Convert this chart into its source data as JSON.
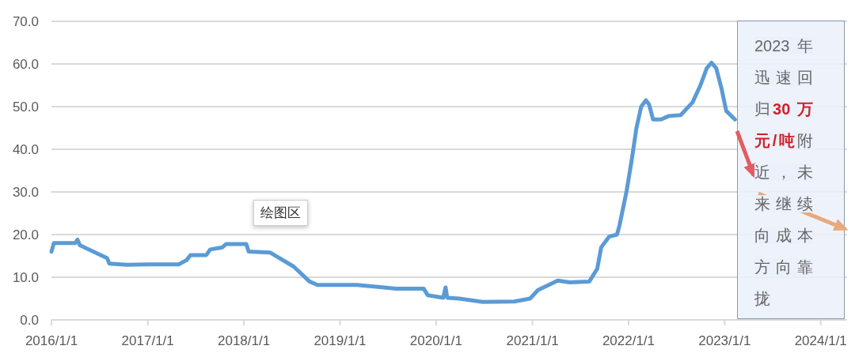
{
  "chart_data": {
    "type": "line",
    "x": [
      "2016-01-01",
      "2016-01-10",
      "2016-03-31",
      "2016-04-09",
      "2016-04-18",
      "2016-07-30",
      "2016-08-08",
      "2016-10-13",
      "2017-01-01",
      "2017-04-28",
      "2017-05-28",
      "2017-06-12",
      "2017-08-11",
      "2017-08-26",
      "2017-10-11",
      "2017-10-26",
      "2018-01-10",
      "2018-01-19",
      "2018-04-10",
      "2018-07-09",
      "2018-09-07",
      "2018-10-07",
      "2019-03-05",
      "2019-06-03",
      "2019-08-02",
      "2019-11-15",
      "2019-11-30",
      "2020-01-28",
      "2020-02-06",
      "2020-02-12",
      "2020-03-28",
      "2020-06-26",
      "2020-10-24",
      "2020-12-23",
      "2021-01-22",
      "2021-04-07",
      "2021-05-22",
      "2021-08-05",
      "2021-09-04",
      "2021-09-19",
      "2021-10-19",
      "2021-11-18",
      "2021-11-27",
      "2021-12-24",
      "2022-01-13",
      "2022-01-31",
      "2022-02-18",
      "2022-03-08",
      "2022-03-20",
      "2022-04-04",
      "2022-05-04",
      "2022-06-03",
      "2022-07-18",
      "2022-09-01",
      "2022-10-01",
      "2022-10-25",
      "2022-11-12",
      "2022-11-30",
      "2022-12-21",
      "2023-01-07",
      "2023-02-09"
    ],
    "series": [
      {
        "color": "#5b9bd5",
        "values": [
          16.0,
          18.0,
          18.0,
          18.8,
          17.5,
          14.5,
          13.2,
          12.9,
          13.0,
          13.0,
          14.0,
          15.2,
          15.2,
          16.5,
          17.0,
          17.8,
          17.8,
          16.0,
          15.8,
          12.5,
          9.0,
          8.2,
          8.2,
          7.7,
          7.3,
          7.3,
          5.8,
          5.2,
          7.6,
          5.2,
          5.0,
          4.2,
          4.3,
          5.0,
          7.0,
          9.2,
          8.8,
          9.0,
          12.0,
          17.0,
          19.5,
          20.0,
          22.0,
          30.0,
          37.5,
          45.0,
          50.0,
          51.5,
          50.5,
          47.0,
          47.0,
          47.8,
          48.0,
          51.0,
          55.0,
          59.0,
          60.3,
          59.0,
          54.0,
          49.0,
          47.0
        ]
      }
    ],
    "xlim": [
      "2016-01-01",
      "2024-04-10"
    ],
    "xticks": [
      {
        "value": "2016-01-01",
        "label": "2016/1/1"
      },
      {
        "value": "2017-01-01",
        "label": "2017/1/1"
      },
      {
        "value": "2018-01-01",
        "label": "2018/1/1"
      },
      {
        "value": "2019-01-01",
        "label": "2019/1/1"
      },
      {
        "value": "2020-01-01",
        "label": "2020/1/1"
      },
      {
        "value": "2021-01-01",
        "label": "2021/1/1"
      },
      {
        "value": "2022-01-01",
        "label": "2022/1/1"
      },
      {
        "value": "2023-01-01",
        "label": "2023/1/1"
      },
      {
        "value": "2024-01-01",
        "label": "2024/1/1"
      }
    ],
    "ylim": [
      0,
      70
    ],
    "yticks": [
      {
        "value": 0,
        "label": "0.0"
      },
      {
        "value": 10,
        "label": "10.0"
      },
      {
        "value": 20,
        "label": "20.0"
      },
      {
        "value": 30,
        "label": "30.0"
      },
      {
        "value": 40,
        "label": "40.0"
      },
      {
        "value": 50,
        "label": "50.0"
      },
      {
        "value": 60,
        "label": "60.0"
      },
      {
        "value": 70,
        "label": "70.0"
      }
    ],
    "grid": "y",
    "marker": "none",
    "line_style": "solid",
    "annotations": [
      "2023 年迅速回归",
      "30 万元/吨",
      "附近，未来继续向成本方向靠拢",
      "绘图区"
    ]
  }
}
